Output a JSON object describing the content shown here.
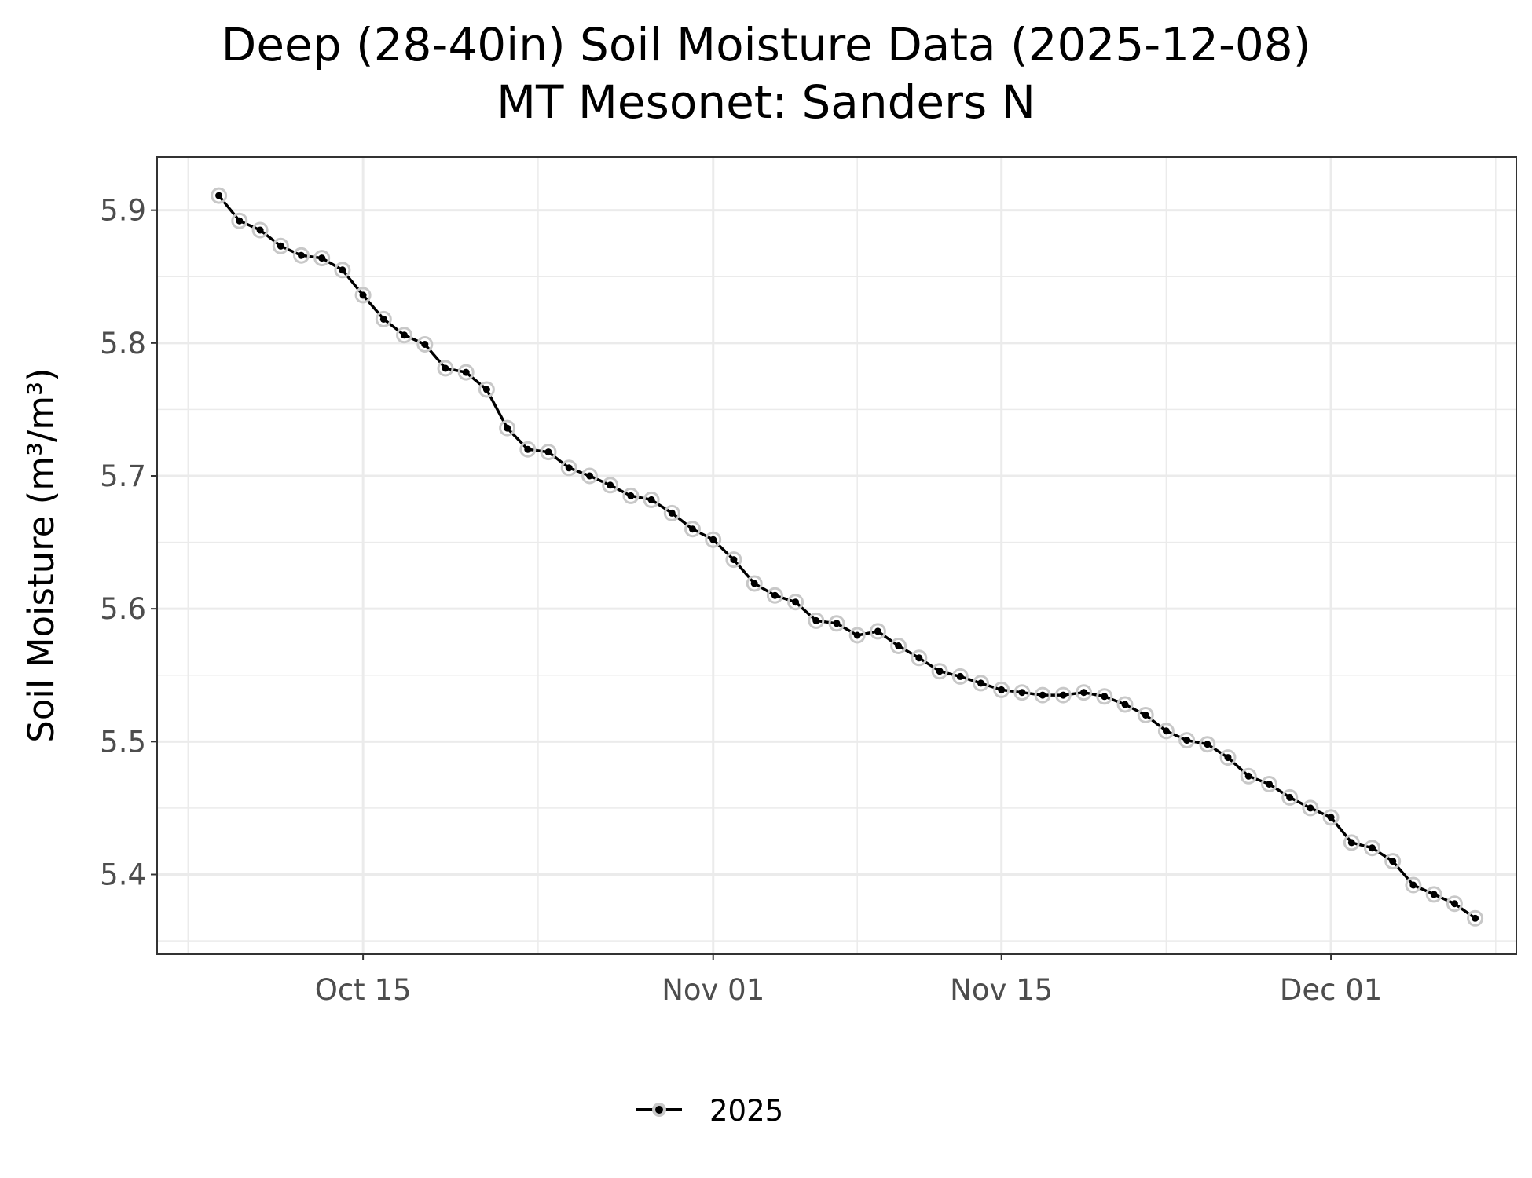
{
  "chart_data": {
    "type": "line",
    "title": "Deep (28-40in) Soil Moisture Data (2025-12-08)",
    "subtitle": "MT Mesonet: Sanders N",
    "xlabel": "",
    "ylabel": "Soil Moisture (m³/m³)",
    "x_tick_labels": [
      "Oct 15",
      "Nov 01",
      "Nov 15",
      "Dec 01"
    ],
    "x_tick_dates": [
      "2025-10-15",
      "2025-11-01",
      "2025-11-15",
      "2025-12-01"
    ],
    "y_ticks": [
      5.4,
      5.5,
      5.6,
      5.7,
      5.8,
      5.9
    ],
    "y_tick_labels": [
      "5.4",
      "5.5",
      "5.6",
      "5.7",
      "5.8",
      "5.9"
    ],
    "xlim": [
      "2025-10-05",
      "2025-12-10"
    ],
    "ylim": [
      5.34,
      5.94
    ],
    "grid": true,
    "legend_position": "bottom",
    "colors": {
      "line": "#000000",
      "point_fill": "#000000",
      "point_halo": "#c8c8c8",
      "grid": "#ebebeb",
      "panel_border": "#333333"
    },
    "series": [
      {
        "name": "2025",
        "x": [
          "2025-10-08",
          "2025-10-09",
          "2025-10-10",
          "2025-10-11",
          "2025-10-12",
          "2025-10-13",
          "2025-10-14",
          "2025-10-15",
          "2025-10-16",
          "2025-10-17",
          "2025-10-18",
          "2025-10-19",
          "2025-10-20",
          "2025-10-21",
          "2025-10-22",
          "2025-10-23",
          "2025-10-24",
          "2025-10-25",
          "2025-10-26",
          "2025-10-27",
          "2025-10-28",
          "2025-10-29",
          "2025-10-30",
          "2025-10-31",
          "2025-11-01",
          "2025-11-02",
          "2025-11-03",
          "2025-11-04",
          "2025-11-05",
          "2025-11-06",
          "2025-11-07",
          "2025-11-08",
          "2025-11-09",
          "2025-11-10",
          "2025-11-11",
          "2025-11-12",
          "2025-11-13",
          "2025-11-14",
          "2025-11-15",
          "2025-11-16",
          "2025-11-17",
          "2025-11-18",
          "2025-11-19",
          "2025-11-20",
          "2025-11-21",
          "2025-11-22",
          "2025-11-23",
          "2025-11-24",
          "2025-11-25",
          "2025-11-26",
          "2025-11-27",
          "2025-11-28",
          "2025-11-29",
          "2025-11-30",
          "2025-12-01",
          "2025-12-02",
          "2025-12-03",
          "2025-12-04",
          "2025-12-05",
          "2025-12-06",
          "2025-12-07",
          "2025-12-08"
        ],
        "values": [
          5.911,
          5.892,
          5.885,
          5.873,
          5.866,
          5.864,
          5.855,
          5.836,
          5.818,
          5.806,
          5.799,
          5.781,
          5.778,
          5.765,
          5.736,
          5.72,
          5.718,
          5.706,
          5.7,
          5.693,
          5.685,
          5.682,
          5.672,
          5.66,
          5.652,
          5.637,
          5.619,
          5.61,
          5.605,
          5.591,
          5.589,
          5.58,
          5.583,
          5.572,
          5.563,
          5.553,
          5.549,
          5.544,
          5.539,
          5.537,
          5.535,
          5.535,
          5.537,
          5.534,
          5.528,
          5.52,
          5.508,
          5.501,
          5.498,
          5.488,
          5.474,
          5.468,
          5.458,
          5.45,
          5.443,
          5.424,
          5.42,
          5.41,
          5.392,
          5.385,
          5.378,
          5.367
        ]
      }
    ]
  }
}
